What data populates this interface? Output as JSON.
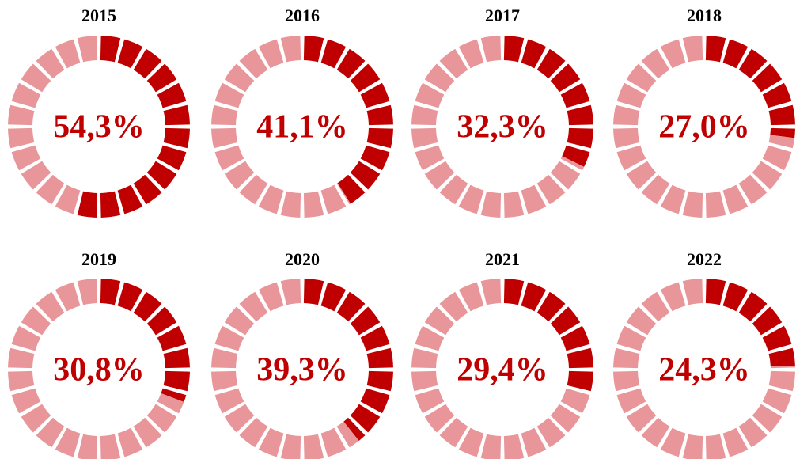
{
  "chart_data": [
    {
      "type": "donut",
      "title": "2015",
      "values": [
        54.3,
        45.7
      ],
      "value_labels": [
        "54,3%",
        null
      ],
      "colors": [
        "#c00000",
        "#e8969a"
      ],
      "segments": 24
    },
    {
      "type": "donut",
      "title": "2016",
      "values": [
        41.1,
        58.9
      ],
      "value_labels": [
        "41,1%",
        null
      ],
      "colors": [
        "#c00000",
        "#e8969a"
      ],
      "segments": 24
    },
    {
      "type": "donut",
      "title": "2017",
      "values": [
        32.3,
        67.7
      ],
      "value_labels": [
        "32,3%",
        null
      ],
      "colors": [
        "#c00000",
        "#e8969a"
      ],
      "segments": 24
    },
    {
      "type": "donut",
      "title": "2018",
      "values": [
        27.0,
        73.0
      ],
      "value_labels": [
        "27,0%",
        null
      ],
      "colors": [
        "#c00000",
        "#e8969a"
      ],
      "segments": 24
    },
    {
      "type": "donut",
      "title": "2019",
      "values": [
        30.8,
        69.2
      ],
      "value_labels": [
        "30,8%",
        null
      ],
      "colors": [
        "#c00000",
        "#e8969a"
      ],
      "segments": 24
    },
    {
      "type": "donut",
      "title": "2020",
      "values": [
        39.3,
        60.7
      ],
      "value_labels": [
        "39,3%",
        null
      ],
      "colors": [
        "#c00000",
        "#e8969a"
      ],
      "segments": 24
    },
    {
      "type": "donut",
      "title": "2021",
      "values": [
        29.4,
        70.6
      ],
      "value_labels": [
        "29,4%",
        null
      ],
      "colors": [
        "#c00000",
        "#e8969a"
      ],
      "segments": 24
    },
    {
      "type": "donut",
      "title": "2022",
      "values": [
        24.3,
        75.7
      ],
      "value_labels": [
        "24,3%",
        null
      ],
      "colors": [
        "#c00000",
        "#e8969a"
      ],
      "segments": 24
    }
  ]
}
